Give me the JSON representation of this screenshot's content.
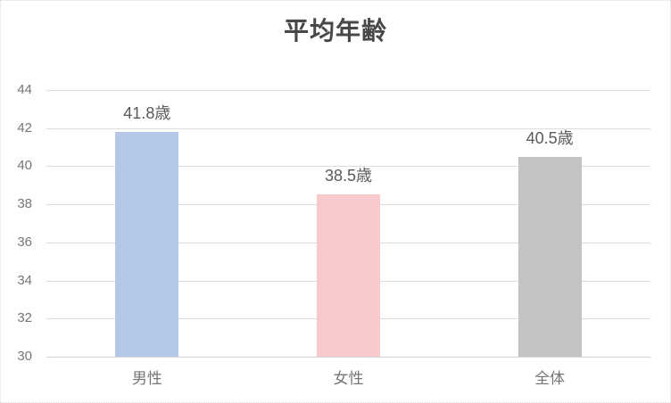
{
  "window": {
    "background": "#ffffff",
    "frame_border_color": "#d9d9d9"
  },
  "chart_data": {
    "type": "bar",
    "title": "平均年齢",
    "categories": [
      "男性",
      "女性",
      "全体"
    ],
    "values": [
      41.8,
      38.5,
      40.5
    ],
    "data_labels": [
      "41.8歳",
      "38.5歳",
      "40.5歳"
    ],
    "unit": "歳",
    "bar_colors": [
      "#b4c7e7",
      "#f9c9cb",
      "#c3c3c3"
    ],
    "xlabel": "",
    "ylabel": "",
    "ylim": [
      30,
      44
    ],
    "yticks": [
      30,
      32,
      34,
      36,
      38,
      40,
      42,
      44
    ],
    "grid": true,
    "legend": "none"
  },
  "style": {
    "title_color": "#484848",
    "axis_text_color": "#767676",
    "data_label_color": "#5a5a5a",
    "gridline_color": "#dcdcdc",
    "axis_line_color": "#d2d2d2"
  }
}
